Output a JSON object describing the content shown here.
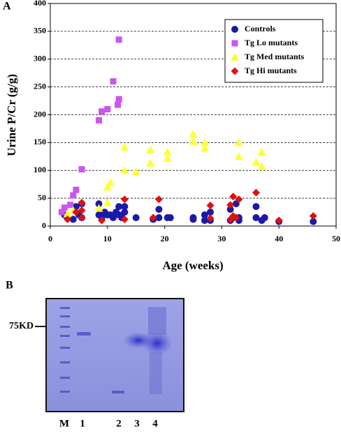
{
  "chart_data": {
    "type": "scatter",
    "panel_label": "A",
    "xlabel": "Age (weeks)",
    "ylabel": "Urine  P/Cr (g/g)",
    "xlim": [
      0,
      50
    ],
    "ylim": [
      0,
      400
    ],
    "xticks": [
      0,
      10,
      20,
      30,
      40,
      50
    ],
    "yticks": [
      0,
      50,
      100,
      150,
      200,
      250,
      300,
      350,
      400
    ],
    "grid": true,
    "legend": "upper right",
    "series": [
      {
        "name": "Controls",
        "color": "#1a1aa8",
        "marker": "circle",
        "x": [
          2.5,
          3,
          4,
          4.5,
          5,
          5.5,
          5.5,
          8.5,
          8.5,
          9,
          9.5,
          10,
          10.5,
          11,
          11.5,
          12,
          12,
          12.5,
          13,
          13,
          15,
          18,
          19,
          19,
          20.5,
          21,
          25,
          25,
          27,
          27,
          28,
          28,
          31.5,
          31.5,
          32,
          32.5,
          33,
          33,
          36,
          36,
          37,
          37.5,
          40,
          46
        ],
        "values": [
          20,
          15,
          12,
          35,
          20,
          15,
          40,
          20,
          40,
          15,
          25,
          20,
          20,
          15,
          25,
          35,
          20,
          15,
          25,
          35,
          15,
          12,
          30,
          15,
          15,
          15,
          12,
          15,
          10,
          20,
          10,
          25,
          10,
          30,
          15,
          40,
          15,
          10,
          35,
          15,
          10,
          15,
          8,
          8
        ]
      },
      {
        "name": "Tg Lo mutants",
        "color": "#cc55ee",
        "marker": "square",
        "x": [
          2,
          2.5,
          3.5,
          4,
          4.5,
          5.5,
          8.5,
          9,
          10,
          11,
          11.8,
          12,
          12
        ],
        "values": [
          25,
          33,
          38,
          55,
          65,
          102,
          190,
          206,
          210,
          260,
          218,
          228,
          335
        ]
      },
      {
        "name": "Tg Med mutants",
        "color": "#ffff33",
        "marker": "triangle",
        "x": [
          3,
          4,
          8.5,
          10,
          10,
          10.5,
          13,
          13,
          15,
          17.5,
          17.5,
          20.5,
          20.5,
          25,
          25,
          27,
          27,
          33,
          33,
          36,
          37,
          37
        ],
        "values": [
          22,
          28,
          32,
          42,
          70,
          78,
          100,
          142,
          98,
          113,
          137,
          122,
          133,
          152,
          165,
          140,
          150,
          125,
          150,
          115,
          107,
          133
        ]
      },
      {
        "name": "Tg Hi mutants",
        "color": "#dd1111",
        "marker": "diamond",
        "x": [
          3,
          4.5,
          5.5,
          5.5,
          5.5,
          9,
          13,
          13,
          18,
          19,
          28,
          28,
          31.5,
          31.5,
          32,
          32,
          32.5,
          33,
          36,
          40,
          46
        ],
        "values": [
          12,
          25,
          15,
          28,
          42,
          10,
          12,
          48,
          15,
          48,
          14,
          37,
          12,
          38,
          18,
          53,
          15,
          48,
          60,
          10,
          18
        ]
      }
    ]
  },
  "panel_b": {
    "label": "B",
    "marker": "75KD",
    "lanes": [
      "M",
      "1",
      "2",
      "3",
      "4"
    ]
  }
}
